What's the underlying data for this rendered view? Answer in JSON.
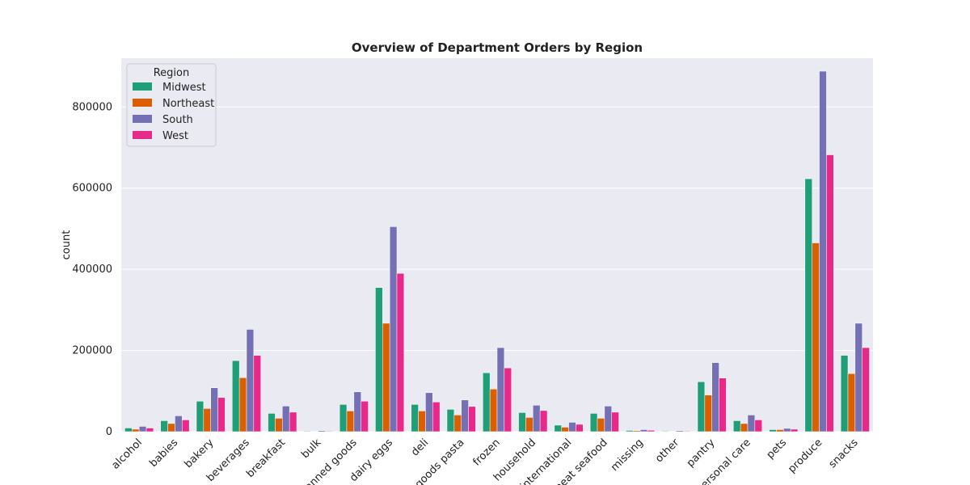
{
  "chart_data": {
    "type": "bar",
    "title": "Overview of Department Orders by Region",
    "xlabel": "",
    "ylabel": "count",
    "ylim": [
      0,
      920000
    ],
    "yticks": [
      0,
      200000,
      400000,
      600000,
      800000
    ],
    "grid": true,
    "legend": {
      "title": "Region",
      "placement": "top-left"
    },
    "categories": [
      "alcohol",
      "babies",
      "bakery",
      "beverages",
      "breakfast",
      "bulk",
      "canned goods",
      "dairy eggs",
      "deli",
      "dry goods pasta",
      "frozen",
      "household",
      "international",
      "meat seafood",
      "missing",
      "other",
      "pantry",
      "personal care",
      "pets",
      "produce",
      "snacks"
    ],
    "series": [
      {
        "name": "Midwest",
        "color": "#1f9e77",
        "values": [
          9000,
          27000,
          75000,
          175000,
          45000,
          1500,
          67000,
          355000,
          67000,
          55000,
          145000,
          47000,
          16000,
          45000,
          3000,
          1500,
          123000,
          27000,
          5000,
          623000,
          188000
        ]
      },
      {
        "name": "Northeast",
        "color": "#d95f02",
        "values": [
          6000,
          20000,
          57000,
          133000,
          33000,
          1000,
          51000,
          267000,
          51000,
          41000,
          105000,
          35000,
          11000,
          33000,
          2500,
          1000,
          90000,
          20000,
          5000,
          465000,
          143000
        ]
      },
      {
        "name": "South",
        "color": "#7570b3",
        "values": [
          13000,
          39000,
          108000,
          252000,
          63000,
          2500,
          98000,
          505000,
          96000,
          78000,
          207000,
          65000,
          23000,
          63000,
          5000,
          2500,
          170000,
          41000,
          8000,
          888000,
          267000
        ]
      },
      {
        "name": "West",
        "color": "#e7298a",
        "values": [
          9000,
          29000,
          84000,
          188000,
          48000,
          1500,
          75000,
          390000,
          73000,
          62000,
          157000,
          52000,
          18000,
          48000,
          3500,
          1500,
          132000,
          29000,
          6000,
          682000,
          207000
        ]
      }
    ]
  }
}
